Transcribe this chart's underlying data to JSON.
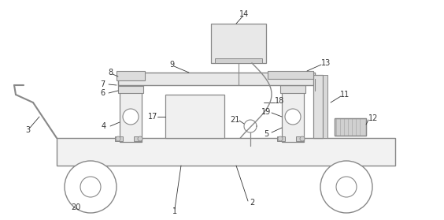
{
  "bg_color": "#ffffff",
  "lc": "#888888",
  "lc2": "#555555",
  "label_color": "#333333",
  "fig_width": 5.64,
  "fig_height": 2.79,
  "dpi": 100
}
